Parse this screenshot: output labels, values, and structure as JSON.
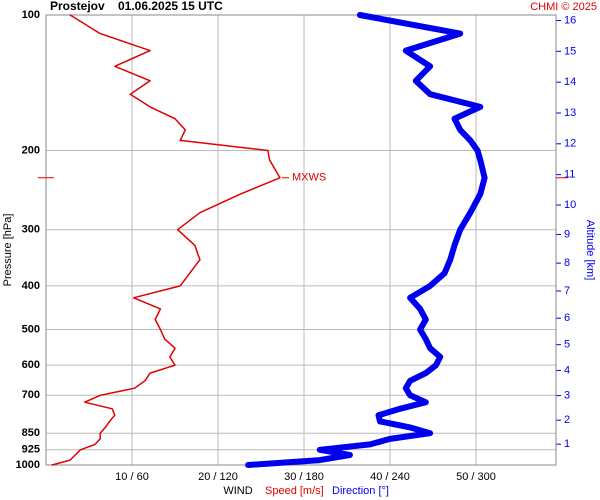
{
  "chart_data": {
    "type": "line",
    "title": "Prostejov",
    "subtitle": "01.06.2025 15 UTC",
    "credit": "CHMI © 2025",
    "y_label": "Pressure [hPa]",
    "y2_label": "Altitude [km]",
    "x_label": "WIND",
    "log_y": true,
    "grid": true,
    "y": [
      1000,
      975,
      950,
      925,
      900,
      875,
      850,
      825,
      800,
      775,
      750,
      725,
      700,
      675,
      650,
      625,
      600,
      575,
      550,
      525,
      500,
      475,
      450,
      425,
      400,
      375,
      350,
      325,
      300,
      275,
      250,
      230,
      210,
      200,
      190,
      180,
      170,
      160,
      150,
      140,
      130,
      120,
      110,
      100
    ],
    "ylim": [
      1000,
      100
    ],
    "yticks": [
      100,
      200,
      300,
      400,
      500,
      600,
      700,
      850,
      925,
      1000
    ],
    "y2ticks": [
      1,
      2,
      3,
      4,
      5,
      6,
      7,
      8,
      9,
      10,
      11,
      12,
      13,
      14,
      15,
      16
    ],
    "xlim": [
      0,
      59.3
    ],
    "x2lim": [
      0,
      355.8
    ],
    "xticks": [
      {
        "value": 10,
        "label": "10 / 60"
      },
      {
        "value": 20,
        "label": "20 / 120"
      },
      {
        "value": 30,
        "label": "30 / 180"
      },
      {
        "value": 40,
        "label": "40 / 240"
      },
      {
        "value": 50,
        "label": "50 / 300"
      }
    ],
    "series": [
      {
        "name": "Speed [m/s]",
        "color": "#e00000",
        "axis": "x",
        "values": [
          0.7,
          2.8,
          3.4,
          4.0,
          5.7,
          6.3,
          6.3,
          6.9,
          7.4,
          8.0,
          7.7,
          4.5,
          6.3,
          10.3,
          11.5,
          12.1,
          15.0,
          14.4,
          15.0,
          13.8,
          13.3,
          12.7,
          13.3,
          10.2,
          15.6,
          16.7,
          17.9,
          17.3,
          15.3,
          17.9,
          22.6,
          27.2,
          26.0,
          25.8,
          15.6,
          16.2,
          15.0,
          12.1,
          9.8,
          12.1,
          8.0,
          12.1,
          6.3,
          2.8
        ]
      },
      {
        "name": "Direction [°]",
        "color": "#0000ee",
        "axis": "x2",
        "values": [
          141,
          191,
          212,
          191,
          226,
          240,
          268,
          254,
          233,
          232,
          247,
          265,
          254,
          251,
          254,
          265,
          272,
          275,
          268,
          265,
          261,
          265,
          261,
          254,
          268,
          278,
          282,
          285,
          289,
          296,
          303,
          306,
          303,
          301,
          296,
          289,
          285,
          303,
          268,
          258,
          268,
          251,
          289,
          219
        ]
      }
    ],
    "annotation": {
      "label": "MXWS",
      "pressure": 230
    }
  }
}
